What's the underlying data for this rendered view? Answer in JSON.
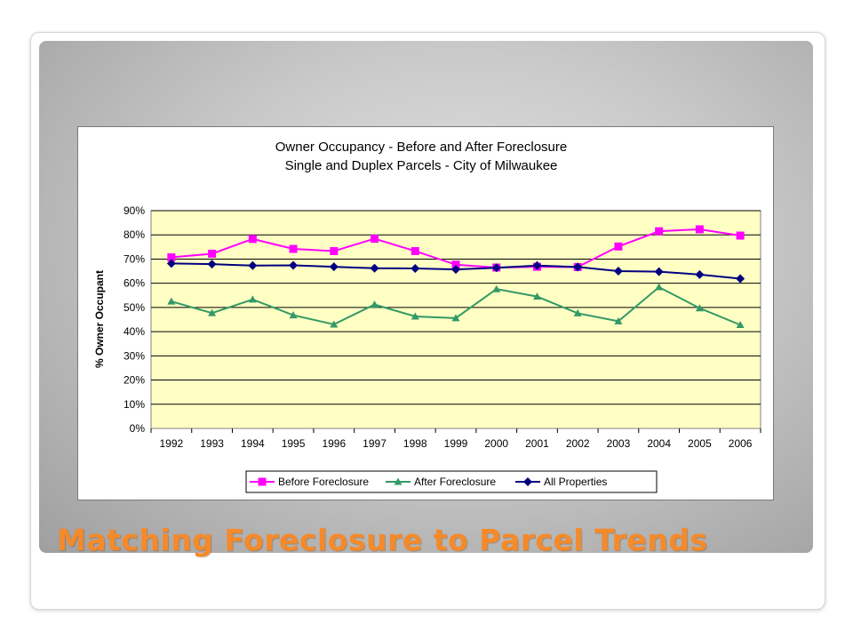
{
  "slide": {
    "title": "Matching Foreclosure to Parcel Trends",
    "title_color": "#f58a2a"
  },
  "chart_data": {
    "type": "line",
    "title_lines": [
      "Owner Occupancy - Before and After Foreclosure",
      "Single and Duplex Parcels - City of Milwaukee"
    ],
    "xlabel": "",
    "ylabel": "% Owner Occupant",
    "categories": [
      "1992",
      "1993",
      "1994",
      "1995",
      "1996",
      "1997",
      "1998",
      "1999",
      "2000",
      "2001",
      "2002",
      "2003",
      "2004",
      "2005",
      "2006"
    ],
    "yticks": [
      "0%",
      "10%",
      "20%",
      "30%",
      "40%",
      "50%",
      "60%",
      "70%",
      "80%",
      "90%"
    ],
    "ylim": [
      0,
      0.9
    ],
    "grid": true,
    "plot_background": "#ffffc4",
    "legend_position": "bottom",
    "series": [
      {
        "name": "Before Foreclosure",
        "color": "#ff00ff",
        "marker": "square",
        "values": [
          0.707,
          0.722,
          0.783,
          0.742,
          0.733,
          0.784,
          0.733,
          0.677,
          0.665,
          0.668,
          0.667,
          0.752,
          0.815,
          0.823,
          0.797
        ]
      },
      {
        "name": "After Foreclosure",
        "color": "#339966",
        "marker": "triangle",
        "values": [
          0.525,
          0.477,
          0.533,
          0.468,
          0.43,
          0.512,
          0.463,
          0.456,
          0.576,
          0.545,
          0.476,
          0.443,
          0.584,
          0.497,
          0.428
        ]
      },
      {
        "name": "All Properties",
        "color": "#000080",
        "marker": "diamond",
        "values": [
          0.682,
          0.679,
          0.673,
          0.674,
          0.668,
          0.662,
          0.661,
          0.657,
          0.664,
          0.673,
          0.667,
          0.65,
          0.648,
          0.636,
          0.619
        ]
      }
    ]
  }
}
